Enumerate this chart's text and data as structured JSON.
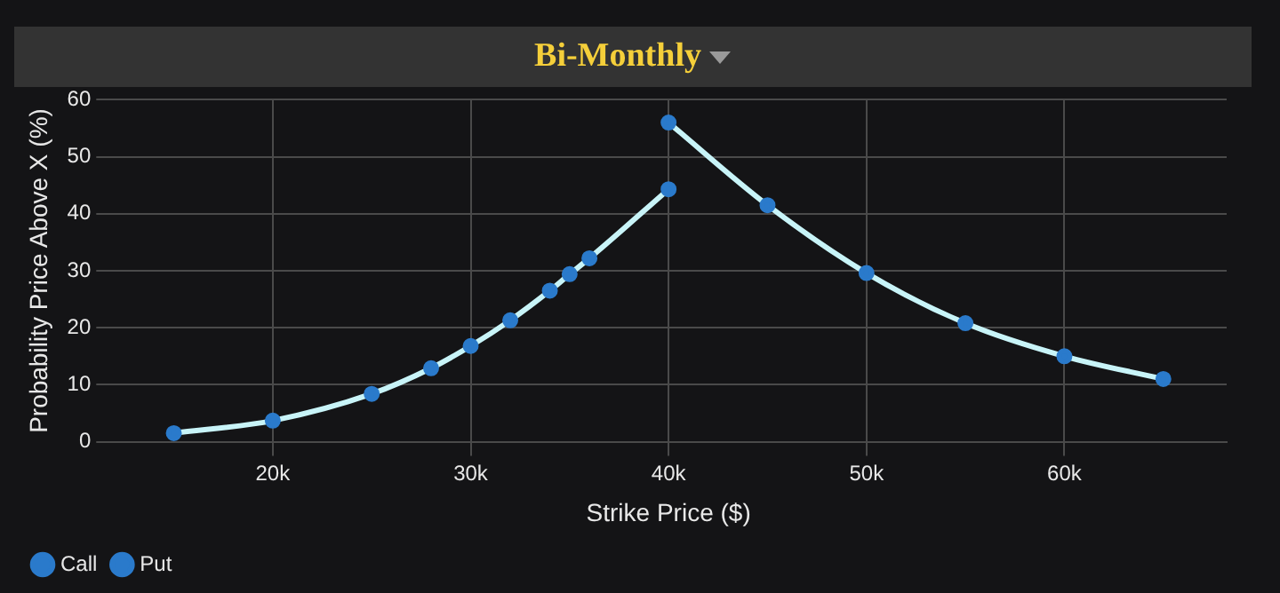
{
  "chart_data": {
    "type": "line",
    "title": "Bi-Monthly",
    "xlabel": "Strike Price ($)",
    "ylabel": "Probability Price Above X (%)",
    "xlim": [
      11800,
      68200
    ],
    "xticks": [
      {
        "value": 20000,
        "label": "20k"
      },
      {
        "value": 30000,
        "label": "30k"
      },
      {
        "value": 40000,
        "label": "40k"
      },
      {
        "value": 50000,
        "label": "50k"
      },
      {
        "value": 60000,
        "label": "60k"
      }
    ],
    "ylim": [
      0,
      60
    ],
    "yticks": [
      0,
      10,
      20,
      30,
      40,
      50,
      60
    ],
    "grid": true,
    "legend": "bottom left",
    "marker": "circle",
    "line_style": "solid",
    "series": [
      {
        "name": "Call",
        "color": "#c8f4f8",
        "x": [
          15000,
          20000,
          25000,
          28000,
          30000,
          32000,
          34000,
          35000,
          36000,
          40000
        ],
        "values": [
          1.5,
          3.7,
          8.4,
          12.9,
          16.8,
          21.3,
          26.5,
          29.4,
          32.2,
          44.3
        ]
      },
      {
        "name": "Put",
        "color": "#c8f4f8",
        "x": [
          40000,
          45000,
          50000,
          55000,
          60000,
          65000
        ],
        "values": [
          56.0,
          41.5,
          29.6,
          20.8,
          15.0,
          11.0
        ]
      }
    ]
  }
}
